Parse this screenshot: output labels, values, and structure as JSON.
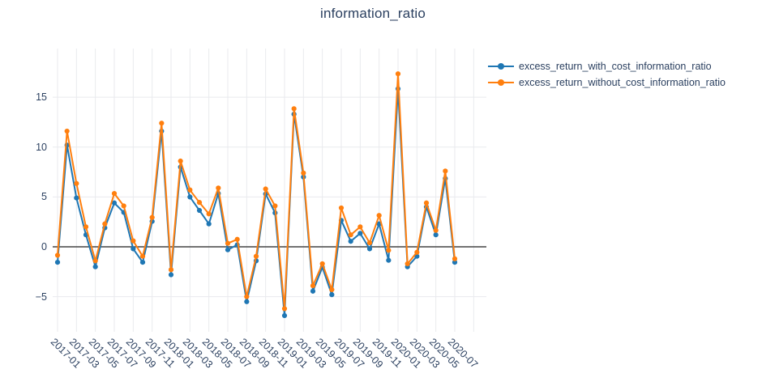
{
  "title": "information_ratio",
  "colors": {
    "text": "#2a3f5f",
    "grid": "#e9eaee",
    "zeroline": "#444444",
    "background": "#ffffff",
    "series_with_cost": "#1f77b4",
    "series_without_cost": "#ff7f0e"
  },
  "chart_data": {
    "type": "line",
    "title": "information_ratio",
    "x": [
      "2017-01",
      "2017-02",
      "2017-03",
      "2017-04",
      "2017-05",
      "2017-06",
      "2017-07",
      "2017-08",
      "2017-09",
      "2017-10",
      "2017-11",
      "2017-12",
      "2018-01",
      "2018-02",
      "2018-03",
      "2018-04",
      "2018-05",
      "2018-06",
      "2018-07",
      "2018-08",
      "2018-09",
      "2018-10",
      "2018-11",
      "2018-12",
      "2019-01",
      "2019-02",
      "2019-03",
      "2019-04",
      "2019-05",
      "2019-06",
      "2019-07",
      "2019-08",
      "2019-09",
      "2019-10",
      "2019-11",
      "2019-12",
      "2020-01",
      "2020-02",
      "2020-03",
      "2020-04",
      "2020-05",
      "2020-06",
      "2020-07"
    ],
    "xticks": [
      "2017-01",
      "2017-03",
      "2017-05",
      "2017-07",
      "2017-09",
      "2017-11",
      "2018-01",
      "2018-03",
      "2018-05",
      "2018-07",
      "2018-09",
      "2018-11",
      "2019-01",
      "2019-03",
      "2019-05",
      "2019-07",
      "2019-09",
      "2019-11",
      "2020-01",
      "2020-03",
      "2020-05",
      "2020-07"
    ],
    "yticks": [
      -5,
      0,
      5,
      10,
      15
    ],
    "ylim": [
      -8.52,
      19.88
    ],
    "grid": true,
    "legend_position": "top-right",
    "series": [
      {
        "name": "excess_return_with_cost_information_ratio",
        "color": "#1f77b4",
        "values": [
          -1.55,
          10.2,
          4.9,
          1.2,
          -2.0,
          1.9,
          4.4,
          3.45,
          -0.2,
          -1.55,
          2.55,
          11.6,
          -2.8,
          8.0,
          5.0,
          3.65,
          2.3,
          5.35,
          -0.3,
          0.2,
          -5.5,
          -1.4,
          5.3,
          3.4,
          -6.9,
          13.3,
          7.0,
          -4.45,
          -2.05,
          -4.8,
          2.65,
          0.55,
          1.35,
          -0.2,
          2.3,
          -1.35,
          15.85,
          -2.0,
          -0.95,
          4.0,
          1.2,
          6.85,
          -1.55
        ]
      },
      {
        "name": "excess_return_without_cost_information_ratio",
        "color": "#ff7f0e",
        "values": [
          -0.85,
          11.6,
          6.35,
          2.0,
          -1.4,
          2.3,
          5.35,
          4.1,
          0.6,
          -0.95,
          2.95,
          12.4,
          -2.3,
          8.6,
          5.7,
          4.45,
          3.3,
          5.9,
          0.35,
          0.75,
          -5.0,
          -0.95,
          5.8,
          4.1,
          -6.2,
          13.85,
          7.4,
          -3.9,
          -1.7,
          -4.3,
          3.9,
          1.2,
          2.0,
          0.4,
          3.15,
          -0.35,
          17.35,
          -1.7,
          -0.55,
          4.4,
          1.65,
          7.6,
          -1.2
        ]
      }
    ]
  }
}
